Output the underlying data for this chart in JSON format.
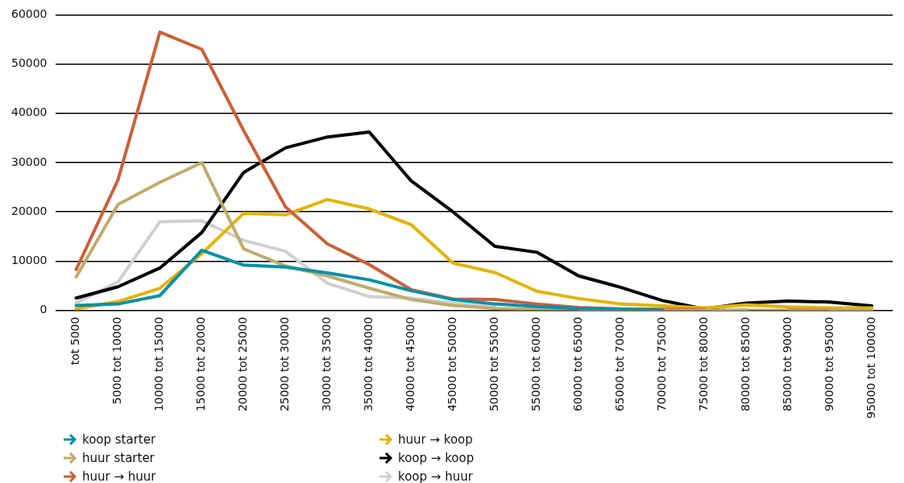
{
  "chart_data": {
    "type": "line",
    "categories": [
      "tot 5000",
      "5000 tot 10000",
      "10000 tot 15000",
      "15000 tot 20000",
      "20000 tot 25000",
      "25000 tot 30000",
      "30000 tot 35000",
      "35000 tot 40000",
      "40000 tot 45000",
      "45000 tot 50000",
      "50000 tot 55000",
      "55000 tot 60000",
      "60000 tot 65000",
      "65000 tot 70000",
      "70000 tot 75000",
      "75000 tot 80000",
      "80000 tot 85000",
      "85000 tot 90000",
      "90000 tot 95000",
      "95000 tot 100000"
    ],
    "ylim": [
      0,
      60000
    ],
    "yticks": [
      0,
      10000,
      20000,
      30000,
      40000,
      50000,
      60000
    ],
    "grid": "y",
    "legend": "bottom",
    "marker": "none",
    "line_style": "solid",
    "series": [
      {
        "name": "koop starter",
        "color": "#0a8fa5",
        "values": [
          1000,
          1300,
          3000,
          12200,
          9200,
          8800,
          7600,
          6200,
          4000,
          2200,
          1300,
          800,
          400,
          200,
          100,
          null,
          null,
          null,
          null,
          null
        ]
      },
      {
        "name": "huur starter",
        "color": "#bfab6e",
        "values": [
          6800,
          21500,
          26000,
          30000,
          12500,
          9000,
          7000,
          4500,
          2200,
          1000,
          400,
          200,
          100,
          0,
          0,
          0,
          0,
          0,
          0,
          0
        ]
      },
      {
        "name": "huur → huur",
        "color": "#c8623a",
        "values": [
          8300,
          26500,
          56500,
          53000,
          36500,
          21000,
          13500,
          9300,
          4200,
          2300,
          2200,
          1300,
          600,
          300,
          200,
          200,
          null,
          100,
          100,
          null
        ]
      },
      {
        "name": "huur → koop",
        "color": "#e2b400",
        "values": [
          300,
          1800,
          4500,
          11500,
          19700,
          19400,
          22500,
          20600,
          17400,
          9600,
          7700,
          3900,
          2400,
          1300,
          900,
          500,
          1100,
          700,
          500,
          500
        ]
      },
      {
        "name": "koop → koop",
        "color": "#000000",
        "values": [
          2500,
          4800,
          8600,
          15800,
          28000,
          33000,
          35200,
          36200,
          26300,
          20000,
          13000,
          11800,
          7000,
          4700,
          2000,
          300,
          1500,
          1900,
          1700,
          900
        ]
      },
      {
        "name": "koop → huur",
        "color": "#d0d0d0",
        "values": [
          1500,
          5800,
          18000,
          18200,
          14200,
          12000,
          5500,
          2800,
          2500,
          1500,
          800,
          null,
          300,
          200,
          null,
          0,
          200,
          null,
          0,
          0
        ]
      }
    ]
  }
}
